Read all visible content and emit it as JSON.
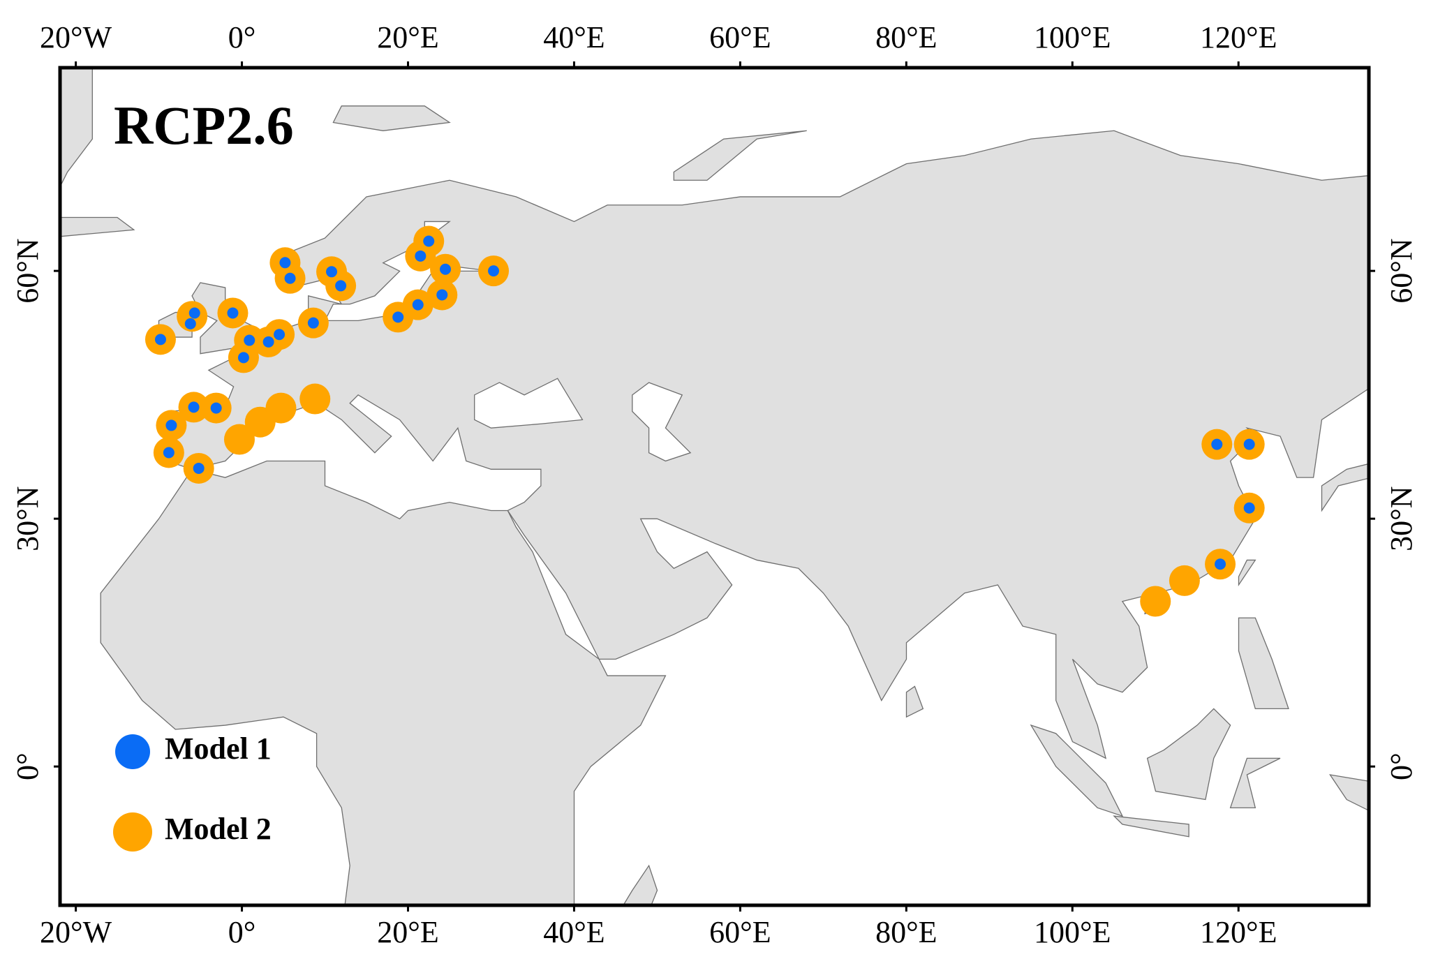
{
  "chart_data": {
    "type": "scatter",
    "title": "RCP2.6",
    "xlim": [
      -21.9,
      135.7
    ],
    "ylim": [
      -16.8,
      84.6
    ],
    "xticks": [
      {
        "value": -20,
        "label": "20°W"
      },
      {
        "value": 0,
        "label": "0°"
      },
      {
        "value": 20,
        "label": "20°E"
      },
      {
        "value": 40,
        "label": "40°E"
      },
      {
        "value": 60,
        "label": "60°E"
      },
      {
        "value": 80,
        "label": "80°E"
      },
      {
        "value": 100,
        "label": "100°E"
      },
      {
        "value": 120,
        "label": "120°E"
      }
    ],
    "yticks": [
      {
        "value": 0,
        "label": "0°"
      },
      {
        "value": 30,
        "label": "30°N"
      },
      {
        "value": 60,
        "label": "60°N"
      }
    ],
    "series": [
      {
        "name": "Model 2",
        "color": "#ffa500",
        "x": [
          -9.8,
          -6.0,
          -1.1,
          0.9,
          0.2,
          3.2,
          4.5,
          5.2,
          5.8,
          8.6,
          10.8,
          11.9,
          18.8,
          21.2,
          21.5,
          22.5,
          24.5,
          24.1,
          30.3,
          -8.5,
          -5.8,
          -3.1,
          -8.8,
          -5.2,
          -0.3,
          2.2,
          4.7,
          8.8,
          117.4,
          121.3,
          121.3,
          117.8,
          113.5,
          110.0
        ],
        "values": [
          51.7,
          54.5,
          54.9,
          51.6,
          49.5,
          51.4,
          52.3,
          61.0,
          59.1,
          53.7,
          59.9,
          58.2,
          54.4,
          55.9,
          61.8,
          63.6,
          60.2,
          57.1,
          60.0,
          41.3,
          43.5,
          43.4,
          38.0,
          36.1,
          39.6,
          41.7,
          43.4,
          44.5,
          39.0,
          39.0,
          31.3,
          24.5,
          22.5,
          20.0
        ]
      },
      {
        "name": "Model 1",
        "color": "#0a6cf5",
        "x": [
          -9.8,
          -5.7,
          -6.2,
          -1.1,
          0.9,
          0.2,
          3.2,
          4.5,
          5.2,
          5.8,
          8.6,
          10.8,
          11.9,
          18.8,
          21.2,
          21.5,
          22.5,
          24.5,
          24.1,
          30.3,
          -8.5,
          -5.8,
          -3.1,
          -8.8,
          -5.2,
          117.4,
          121.3,
          121.3,
          117.8
        ],
        "values": [
          51.7,
          54.9,
          53.6,
          54.9,
          51.6,
          49.5,
          51.4,
          52.3,
          61.0,
          59.1,
          53.7,
          59.9,
          58.2,
          54.4,
          55.9,
          61.8,
          63.6,
          60.2,
          57.1,
          60.0,
          41.3,
          43.5,
          43.4,
          38.0,
          36.1,
          39.0,
          39.0,
          31.3,
          24.5
        ]
      }
    ]
  }
}
